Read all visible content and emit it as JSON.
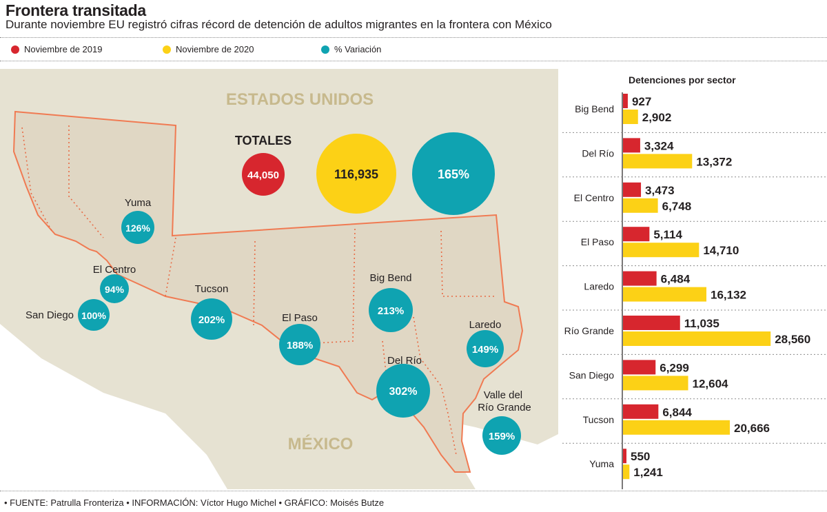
{
  "title": "Frontera transitada",
  "subtitle": "Durante noviembre EU registró cifras récord de detención de adultos migrantes en la frontera con México",
  "legend": [
    {
      "label": "Noviembre de 2019",
      "color": "#d7262e"
    },
    {
      "label": "Noviembre de 2020",
      "color": "#fcd116"
    },
    {
      "label": "% Variación",
      "color": "#0fa3b1"
    }
  ],
  "map": {
    "country_us": "ESTADOS UNIDOS",
    "country_mx": "MÉXICO",
    "totals_label": "TOTALES",
    "totals": [
      "44,050",
      "116,935",
      "165%"
    ],
    "sectors": [
      {
        "name": "Yuma",
        "pct": "126%"
      },
      {
        "name": "El Centro",
        "pct": "94%"
      },
      {
        "name": "San Diego",
        "pct": "100%"
      },
      {
        "name": "Tucson",
        "pct": "202%"
      },
      {
        "name": "El Paso",
        "pct": "188%"
      },
      {
        "name": "Big Bend",
        "pct": "213%"
      },
      {
        "name": "Del Río",
        "pct": "302%"
      },
      {
        "name": "Laredo",
        "pct": "149%"
      },
      {
        "name": "Valle del Río Grande",
        "pct": "159%"
      }
    ]
  },
  "chart_data": {
    "type": "bar",
    "title": "Detenciones por sector",
    "categories": [
      "Big Bend",
      "Del Río",
      "El Centro",
      "El Paso",
      "Laredo",
      "Río Grande",
      "San Diego",
      "Tucson",
      "Yuma"
    ],
    "series": [
      {
        "name": "Noviembre de 2019",
        "color": "#d7262e",
        "values": [
          927,
          3324,
          3473,
          5114,
          6484,
          11035,
          6299,
          6844,
          550
        ]
      },
      {
        "name": "Noviembre de 2020",
        "color": "#fcd116",
        "values": [
          2902,
          13372,
          6748,
          14710,
          16132,
          28560,
          12604,
          20666,
          1241
        ]
      }
    ],
    "xlim": [
      0,
      30000
    ],
    "grid": false
  },
  "footer": "• FUENTE: Patrulla Fronteriza • INFORMACIÓN: Víctor Hugo Michel • GRÁFICO: Moisés Butze",
  "colors": {
    "panel": "#e6e2d2",
    "states": "#e0d7c4",
    "border_line": "#f07a52",
    "country_text": "#c7b98d"
  }
}
